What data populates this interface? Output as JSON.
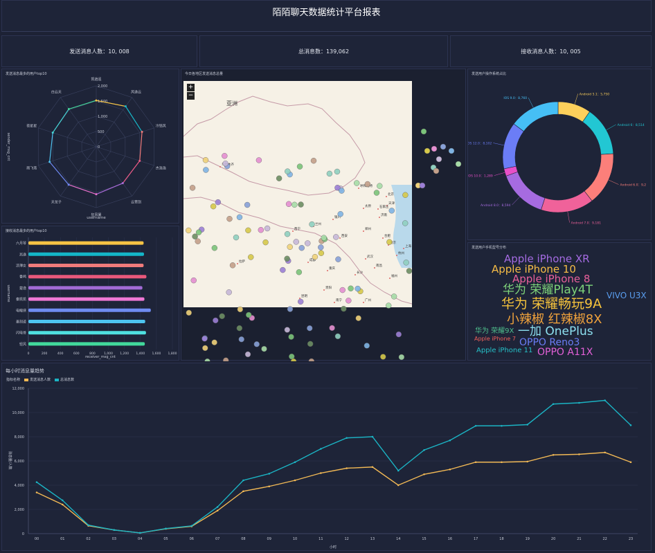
{
  "header": {
    "title": "陌陌聊天数据统计平台报表"
  },
  "stats": {
    "sender": "发送消息人数：10, 008",
    "total": "总消息数：139,062",
    "receiver": "接收消息人数：10, 005"
  },
  "radar": {
    "title": "发送消息最多的用户top10",
    "axis_label": "sender_msg_cnt",
    "xlabel": "username",
    "ticks": [
      "0",
      "500",
      "1,000",
      "1,500",
      "2,000"
    ],
    "max": 2000,
    "users": [
      "凯逍遥",
      "风逸云",
      "冷铭风",
      "杰浩浩",
      "云霄剑",
      "狂风暴",
      "天龙子",
      "雨飞燕",
      "夜星星",
      "白云天"
    ],
    "values": [
      1520,
      1640,
      1580,
      1500,
      1480,
      1560,
      1540,
      1610,
      1500,
      1530
    ]
  },
  "bars": {
    "title": "接收消息最多的用户top10",
    "ylabel": "username",
    "xlabel": "receiver_msg_cnt",
    "xticks": [
      "0",
      "200",
      "400",
      "600",
      "800",
      "1,000",
      "1,200",
      "1,400",
      "1,600",
      "1,800"
    ],
    "max": 1800,
    "colors": [
      "#f6c344",
      "#14b6c9",
      "#f07b7b",
      "#e9587b",
      "#a26bd6",
      "#ef78d5",
      "#6f8cf2",
      "#4dc4f0",
      "#4fe0e0",
      "#42d99c"
    ],
    "users": [
      "六月琴",
      "兆逸",
      "凉薄女",
      "香鸣",
      "楚逸",
      "秦凯凯",
      "电眼侠",
      "墨刻迹",
      "闪电哥",
      "轻风"
    ],
    "values": [
      1440,
      1445,
      1440,
      1475,
      1425,
      1450,
      1530,
      1460,
      1470,
      1455
    ]
  },
  "map": {
    "title": "今日各地区发送消息总量",
    "zoom_in": "+",
    "zoom_out": "−",
    "labels": [
      "亚洲",
      "乌鲁木齐",
      "拉萨",
      "呼和浩特",
      "北京",
      "天津",
      "石家庄",
      "太原",
      "济南",
      "银川",
      "兰州",
      "西宁",
      "西安",
      "郑州",
      "合肥",
      "南京",
      "武汉",
      "长沙",
      "成都",
      "重庆",
      "贵阳",
      "昆明",
      "南宁",
      "广州",
      "福州",
      "南昌",
      "杭州",
      "上海"
    ]
  },
  "donut": {
    "title": "发送用户操作系统占比",
    "items": [
      {
        "label": "Android 5.1：5,750",
        "value": 5750,
        "color": "#fdd05b"
      },
      {
        "label": "Android 6：8,514",
        "value": 8514,
        "color": "#22c7d3"
      },
      {
        "label": "Android 6.0：9,2",
        "value": 9200,
        "color": "#fc7f7a"
      },
      {
        "label": "Android 7.0：9,181",
        "value": 9181,
        "color": "#f0629a"
      },
      {
        "label": "Android 8.0：8,594",
        "value": 8594,
        "color": "#a66be0"
      },
      {
        "label": "IOS 10.0：1,289",
        "value": 1289,
        "color": "#e84fc8"
      },
      {
        "label": "IOS 12.0：8,102",
        "value": 8102,
        "color": "#6b7df6"
      },
      {
        "label": "IOS 9.0：8,760",
        "value": 8760,
        "color": "#46bff5"
      }
    ]
  },
  "cloud": {
    "title": "发送用户手机型号分布",
    "words": [
      {
        "text": "Apple iPhone XR",
        "color": "#a46be2",
        "size": 15
      },
      {
        "text": "Apple iPhone 10",
        "color": "#f6bc46",
        "size": 15
      },
      {
        "text": "Apple iPhone 8",
        "color": "#e8609b",
        "size": 15
      },
      {
        "text": "华为 荣耀Play4T",
        "color": "#7ed37a",
        "size": 17
      },
      {
        "text": "VIVO U3X",
        "color": "#5a9ef0",
        "size": 12
      },
      {
        "text": "华为 荣耀畅玩9A",
        "color": "#f6c33c",
        "size": 19
      },
      {
        "text": "小辣椒 红辣椒8X",
        "color": "#f0a23c",
        "size": 18
      },
      {
        "text": "华为 荣耀9X",
        "color": "#4fbf8d",
        "size": 10
      },
      {
        "text": "一加 OnePlus",
        "color": "#8de0f0",
        "size": 17
      },
      {
        "text": "Apple iPhone 7",
        "color": "#f0605a",
        "size": 8
      },
      {
        "text": "OPPO Reno3",
        "color": "#6b7df6",
        "size": 14
      },
      {
        "text": "Apple iPhone 11",
        "color": "#26c2c9",
        "size": 10
      },
      {
        "text": "OPPO A11X",
        "color": "#e360d8",
        "size": 14
      }
    ]
  },
  "line_panel": {
    "title": "每小时消息量趋势"
  },
  "chart_data": {
    "type": "line",
    "title": "每小时消息量趋势",
    "legend_prefix": "指标名称",
    "xlabel": "小时",
    "ylabel": "消息量/人数",
    "ylim": [
      0,
      12000
    ],
    "yticks": [
      "0",
      "2,000",
      "4,000",
      "6,000",
      "8,000",
      "10,000",
      "12,000"
    ],
    "x": [
      "00",
      "01",
      "02",
      "03",
      "04",
      "05",
      "06",
      "07",
      "08",
      "09",
      "10",
      "11",
      "12",
      "13",
      "14",
      "15",
      "16",
      "17",
      "18",
      "19",
      "20",
      "21",
      "22",
      "23"
    ],
    "series": [
      {
        "name": "发送消息人数",
        "color": "#f2b955",
        "values": [
          3400,
          2400,
          650,
          300,
          60,
          400,
          600,
          1900,
          3500,
          3900,
          4400,
          5000,
          5400,
          5500,
          4000,
          4900,
          5300,
          5900,
          5900,
          5950,
          6500,
          6550,
          6700,
          5900
        ]
      },
      {
        "name": "总消息数",
        "color": "#1bb4c4",
        "values": [
          4250,
          2750,
          700,
          300,
          60,
          420,
          640,
          2200,
          4400,
          4950,
          5900,
          7000,
          7900,
          8000,
          5200,
          6900,
          7700,
          8900,
          8900,
          9000,
          10700,
          10800,
          11000,
          8950
        ]
      }
    ]
  }
}
